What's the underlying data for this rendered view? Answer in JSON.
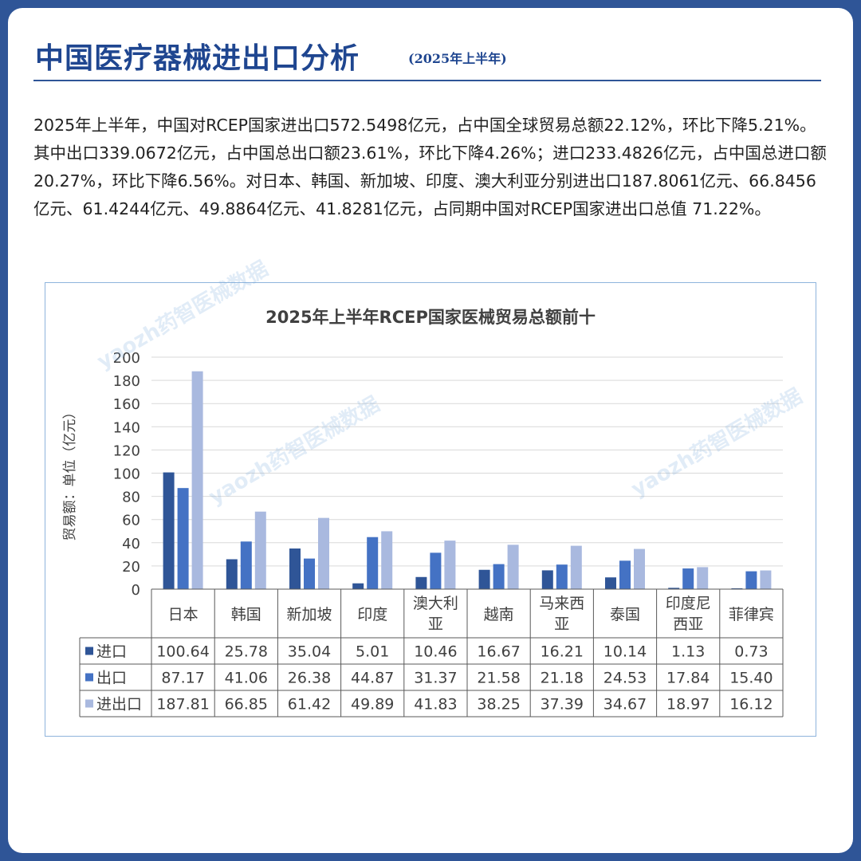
{
  "header": {
    "title": "中国医疗器械进出口分析",
    "subtitle": "(2025年上半年)"
  },
  "paragraph": "2025年上半年，中国对RCEP国家进出口572.5498亿元，占中国全球贸易总额22.12%，环比下降5.21%。其中出口339.0672亿元，占中国总出口额23.61%，环比下降4.26%；进口233.4826亿元，占中国总进口额20.27%，环比下降6.56%。对日本、韩国、新加坡、印度、澳大利亚分别进出口187.8061亿元、66.8456亿元、61.4244亿元、49.8864亿元、41.8281亿元，占同期中国对RCEP国家进出口总值 71.22%。",
  "watermark": "yaozh药智医械数据",
  "chart_data": {
    "type": "bar",
    "title": "2025年上半年RCEP国家医械贸易总额前十",
    "ylabel": "贸易额：单位（亿元）",
    "ylim": [
      0,
      200
    ],
    "yticks": [
      "0",
      "20",
      "40",
      "60",
      "80",
      "100",
      "120",
      "140",
      "160",
      "180",
      "200"
    ],
    "grid": true,
    "categories": [
      "日本",
      "韩国",
      "新加坡",
      "印度",
      "澳大利亚",
      "越南",
      "马来西亚",
      "泰国",
      "印度尼西亚",
      "菲律宾"
    ],
    "category_lines": [
      [
        "日本"
      ],
      [
        "韩国"
      ],
      [
        "新加坡"
      ],
      [
        "印度"
      ],
      [
        "澳大利",
        "亚"
      ],
      [
        "越南"
      ],
      [
        "马来西",
        "亚"
      ],
      [
        "泰国"
      ],
      [
        "印度尼",
        "西亚"
      ],
      [
        "菲律宾"
      ]
    ],
    "series": [
      {
        "name": "进口",
        "color": "#2f5597",
        "values": [
          100.64,
          25.78,
          35.04,
          5.01,
          10.46,
          16.67,
          16.21,
          10.14,
          1.13,
          0.73
        ]
      },
      {
        "name": "出口",
        "color": "#4472c4",
        "values": [
          87.17,
          41.06,
          26.38,
          44.87,
          31.37,
          21.58,
          21.18,
          24.53,
          17.84,
          15.4
        ]
      },
      {
        "name": "进出口",
        "color": "#a9b9df",
        "values": [
          187.81,
          66.85,
          61.42,
          49.89,
          41.83,
          38.25,
          37.39,
          34.67,
          18.97,
          16.12
        ]
      }
    ],
    "table_values": [
      [
        "100.64",
        "25.78",
        "35.04",
        "5.01",
        "10.46",
        "16.67",
        "16.21",
        "10.14",
        "1.13",
        "0.73"
      ],
      [
        "87.17",
        "41.06",
        "26.38",
        "44.87",
        "31.37",
        "21.58",
        "21.18",
        "24.53",
        "17.84",
        "15.40"
      ],
      [
        "187.81",
        "66.85",
        "61.42",
        "49.89",
        "41.83",
        "38.25",
        "37.39",
        "34.67",
        "18.97",
        "16.12"
      ]
    ]
  }
}
